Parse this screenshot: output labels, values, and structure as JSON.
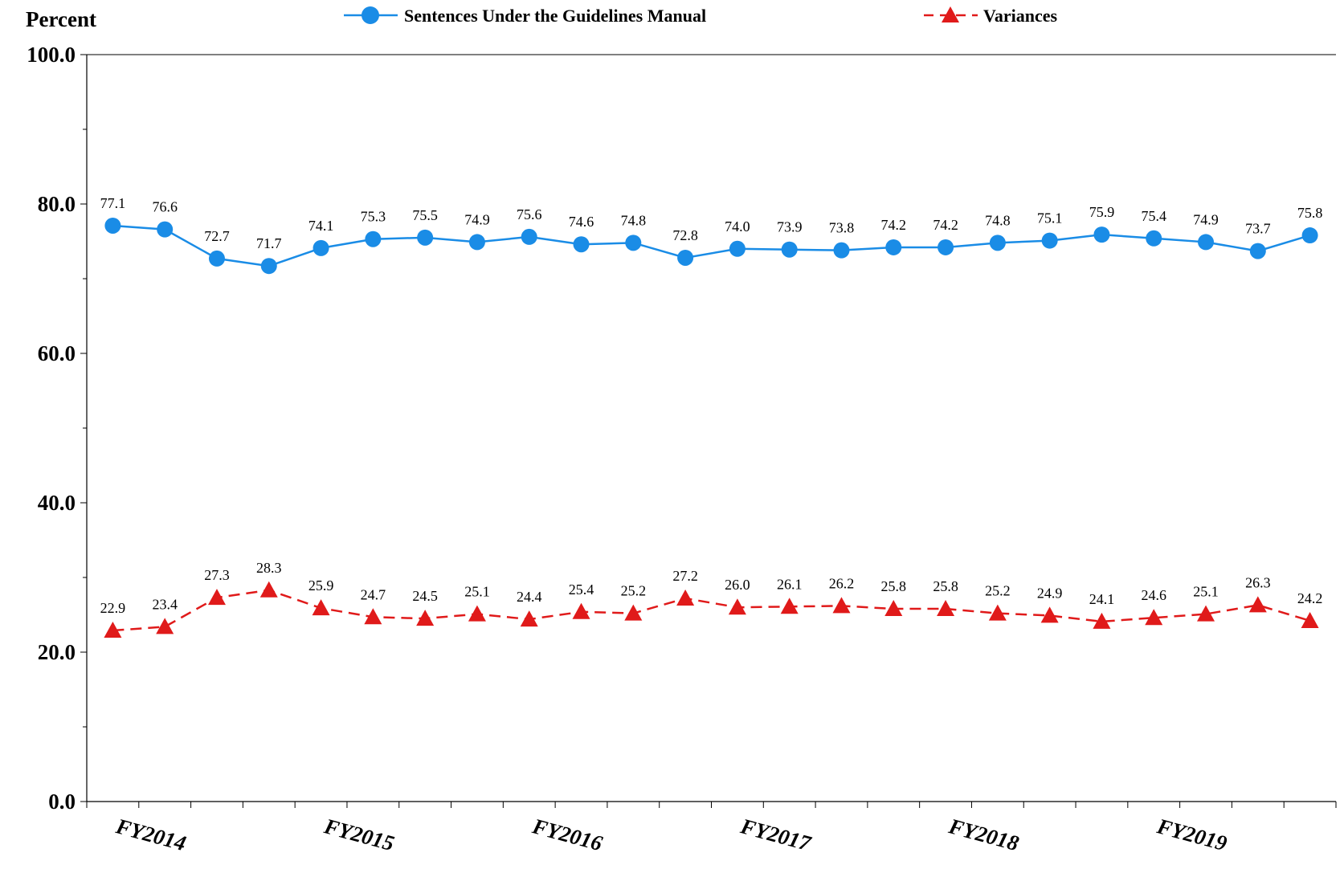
{
  "chart_data": {
    "type": "line",
    "ylabel": "Percent",
    "ylim": [
      0,
      100
    ],
    "yticks": [
      "0.0",
      "20.0",
      "40.0",
      "60.0",
      "80.0",
      "100.0"
    ],
    "x_group_labels": [
      "FY2014",
      "FY2015",
      "FY2016",
      "FY2017",
      "FY2018",
      "FY2019"
    ],
    "legend_position": "top-center",
    "series": [
      {
        "name": "Sentences Under the Guidelines Manual",
        "color": "#1a8ce6",
        "marker": "circle",
        "line_style": "solid",
        "values": [
          77.1,
          76.6,
          72.7,
          71.7,
          74.1,
          75.3,
          75.5,
          74.9,
          75.6,
          74.6,
          74.8,
          72.8,
          74.0,
          73.9,
          73.8,
          74.2,
          74.2,
          74.8,
          75.1,
          75.9,
          75.4,
          74.9,
          73.7,
          75.8
        ],
        "labels": [
          "77.1",
          "76.6",
          "72.7",
          "71.7",
          "74.1",
          "75.3",
          "75.5",
          "74.9",
          "75.6",
          "74.6",
          "74.8",
          "72.8",
          "74.0",
          "73.9",
          "73.8",
          "74.2",
          "74.2",
          "74.8",
          "75.1",
          "75.9",
          "75.4",
          "74.9",
          "73.7",
          "75.8"
        ]
      },
      {
        "name": "Variances",
        "color": "#e01a1a",
        "marker": "triangle",
        "line_style": "dashed",
        "values": [
          22.9,
          23.4,
          27.3,
          28.3,
          25.9,
          24.7,
          24.5,
          25.1,
          24.4,
          25.4,
          25.2,
          27.2,
          26.0,
          26.1,
          26.2,
          25.8,
          25.8,
          25.2,
          24.9,
          24.1,
          24.6,
          25.1,
          26.3,
          24.2
        ],
        "labels": [
          "22.9",
          "23.4",
          "27.3",
          "28.3",
          "25.9",
          "24.7",
          "24.5",
          "25.1",
          "24.4",
          "25.4",
          "25.2",
          "27.2",
          "26.0",
          "26.1",
          "26.2",
          "25.8",
          "25.8",
          "25.2",
          "24.9",
          "24.1",
          "24.6",
          "25.1",
          "26.3",
          "24.2"
        ]
      }
    ]
  }
}
